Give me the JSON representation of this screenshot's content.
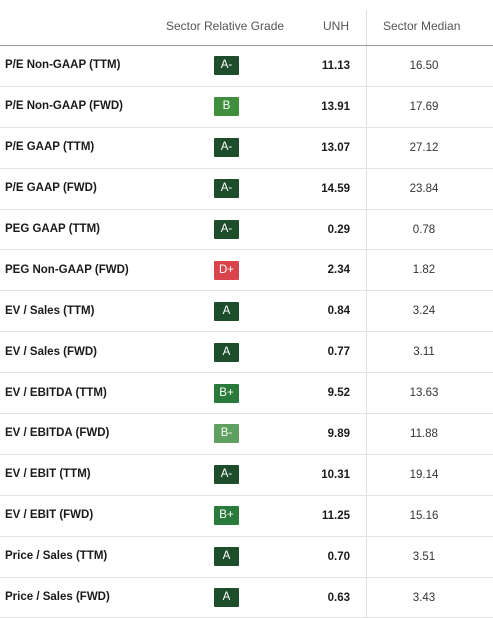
{
  "header": {
    "grade_label": "Sector Relative Grade",
    "ticker_label": "UNH",
    "median_label": "Sector Median"
  },
  "grade_colors": {
    "A": "#1e4d2b",
    "A-": "#1e4d2b",
    "B+": "#2a7a3b",
    "B": "#3f8f3f",
    "B-": "#5f9f5f",
    "D+": "#d9434b"
  },
  "rows": [
    {
      "metric": "P/E Non-GAAP (TTM)",
      "grade": "A-",
      "value": "11.13",
      "median": "16.50"
    },
    {
      "metric": "P/E Non-GAAP (FWD)",
      "grade": "B",
      "value": "13.91",
      "median": "17.69"
    },
    {
      "metric": "P/E GAAP (TTM)",
      "grade": "A-",
      "value": "13.07",
      "median": "27.12"
    },
    {
      "metric": "P/E GAAP (FWD)",
      "grade": "A-",
      "value": "14.59",
      "median": "23.84"
    },
    {
      "metric": "PEG GAAP (TTM)",
      "grade": "A-",
      "value": "0.29",
      "median": "0.78"
    },
    {
      "metric": "PEG Non-GAAP (FWD)",
      "grade": "D+",
      "value": "2.34",
      "median": "1.82"
    },
    {
      "metric": "EV / Sales (TTM)",
      "grade": "A",
      "value": "0.84",
      "median": "3.24"
    },
    {
      "metric": "EV / Sales (FWD)",
      "grade": "A",
      "value": "0.77",
      "median": "3.11"
    },
    {
      "metric": "EV / EBITDA (TTM)",
      "grade": "B+",
      "value": "9.52",
      "median": "13.63"
    },
    {
      "metric": "EV / EBITDA (FWD)",
      "grade": "B-",
      "value": "9.89",
      "median": "11.88"
    },
    {
      "metric": "EV / EBIT (TTM)",
      "grade": "A-",
      "value": "10.31",
      "median": "19.14"
    },
    {
      "metric": "EV / EBIT (FWD)",
      "grade": "B+",
      "value": "11.25",
      "median": "15.16"
    },
    {
      "metric": "Price / Sales (TTM)",
      "grade": "A",
      "value": "0.70",
      "median": "3.51"
    },
    {
      "metric": "Price / Sales (FWD)",
      "grade": "A",
      "value": "0.63",
      "median": "3.43"
    }
  ]
}
